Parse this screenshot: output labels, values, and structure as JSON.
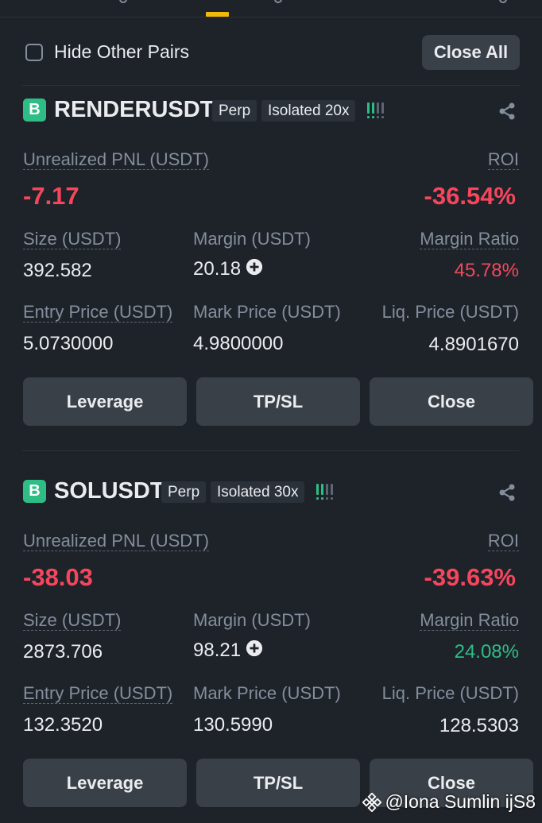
{
  "filter": {
    "hide_label": "Hide Other Pairs",
    "close_all_label": "Close All"
  },
  "positions": [
    {
      "badge": "B",
      "symbol": "RENDERUSDT",
      "type_tag": "Perp",
      "margin_tag": "Isolated 20x",
      "risk_level": 2,
      "pnl_label": "Unrealized PNL (USDT)",
      "pnl_value": "-7.17",
      "roi_label": "ROI",
      "roi_value": "-36.54%",
      "size_label": "Size (USDT)",
      "size_value": "392.582",
      "margin_label": "Margin (USDT)",
      "margin_value": "20.18",
      "margin_ratio_label": "Margin Ratio",
      "margin_ratio_value": "45.78%",
      "margin_ratio_color": "#f6465d",
      "entry_label": "Entry Price (USDT)",
      "entry_value": "5.0730000",
      "mark_label": "Mark Price (USDT)",
      "mark_value": "4.9800000",
      "liq_label": "Liq. Price (USDT)",
      "liq_value": "4.8901670",
      "buttons": {
        "leverage": "Leverage",
        "tpsl": "TP/SL",
        "close": "Close"
      }
    },
    {
      "badge": "B",
      "symbol": "SOLUSDT",
      "type_tag": "Perp",
      "margin_tag": "Isolated 30x",
      "risk_level": 2,
      "pnl_label": "Unrealized PNL (USDT)",
      "pnl_value": "-38.03",
      "roi_label": "ROI",
      "roi_value": "-39.63%",
      "size_label": "Size (USDT)",
      "size_value": "2873.706",
      "margin_label": "Margin (USDT)",
      "margin_value": "98.21",
      "margin_ratio_label": "Margin Ratio",
      "margin_ratio_value": "24.08%",
      "margin_ratio_color": "#2ebd85",
      "entry_label": "Entry Price (USDT)",
      "entry_value": "132.3520",
      "mark_label": "Mark Price (USDT)",
      "mark_value": "130.5990",
      "liq_label": "Liq. Price (USDT)",
      "liq_value": "128.5303",
      "buttons": {
        "leverage": "Leverage",
        "tpsl": "TP/SL",
        "close": "Close"
      }
    }
  ],
  "colors": {
    "background": "#1e2329",
    "loss": "#f6465d",
    "profit": "#2ebd85",
    "accent": "#f0b90b"
  },
  "icons": {
    "share": "share-icon",
    "add_margin": "plus-circle-icon",
    "risk": "signal-bars-icon",
    "watermark": "binance-logo-icon"
  },
  "watermark": "@Iona Sumlin ijS8"
}
